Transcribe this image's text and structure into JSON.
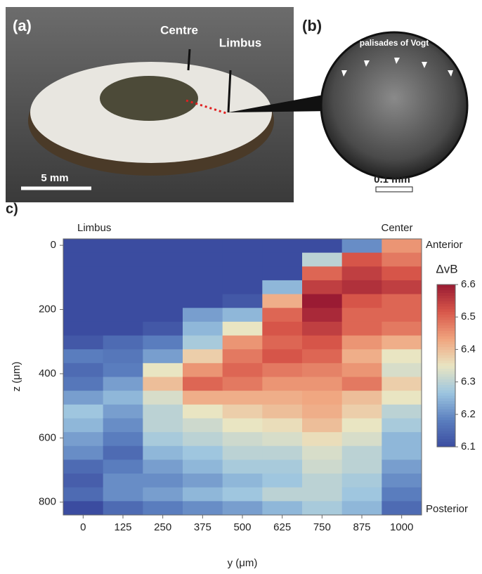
{
  "panels": {
    "a": {
      "label": "(a)",
      "centre": "Centre",
      "limbus": "Limbus",
      "scale": "5 mm"
    },
    "b": {
      "label": "(b)",
      "annotation": "palisades of Vogt",
      "scale": "0.1 mm"
    }
  },
  "chart_data": {
    "type": "heatmap",
    "panel_label": "c)",
    "left_note": "Limbus",
    "right_note": "Center",
    "top_note": "Anterior",
    "bottom_note": "Posterior",
    "xlabel": "y (μm)",
    "ylabel": "z (μm)",
    "colorbar_label": "ΔvB",
    "x": [
      0,
      125,
      250,
      375,
      500,
      625,
      750,
      875,
      1000
    ],
    "xlim": [
      -62.5,
      1062.5
    ],
    "z_edges": [
      -20,
      23,
      66,
      109,
      152,
      195,
      238,
      281,
      324,
      367,
      410,
      453,
      496,
      539,
      582,
      625,
      668,
      711,
      754,
      797,
      840
    ],
    "ylim": [
      -20,
      840
    ],
    "yticks": [
      0,
      200,
      400,
      600,
      800
    ],
    "clim": [
      6.1,
      6.6
    ],
    "cticks": [
      6.1,
      6.2,
      6.3,
      6.4,
      6.5,
      6.6
    ],
    "colormap": [
      "#3b4ca0",
      "#5b7fbf",
      "#9cc5e0",
      "#e9e5c2",
      "#f0a47e",
      "#d8574a",
      "#9a1b33"
    ],
    "values": [
      [
        6.1,
        6.1,
        6.1,
        6.1,
        6.1,
        6.1,
        6.1,
        6.12,
        6.18,
        6.15,
        6.17,
        6.22,
        6.27,
        6.25,
        6.22,
        6.2,
        6.15,
        6.13,
        6.15,
        6.1
      ],
      [
        6.1,
        6.1,
        6.1,
        6.1,
        6.1,
        6.1,
        6.1,
        6.15,
        6.17,
        6.18,
        6.22,
        6.25,
        6.22,
        6.2,
        6.18,
        6.15,
        6.18,
        6.2,
        6.2,
        6.15
      ],
      [
        6.1,
        6.1,
        6.1,
        6.1,
        6.1,
        6.1,
        6.12,
        6.18,
        6.22,
        6.35,
        6.4,
        6.33,
        6.3,
        6.3,
        6.28,
        6.25,
        6.22,
        6.2,
        6.22,
        6.18
      ],
      [
        6.1,
        6.1,
        6.1,
        6.1,
        6.1,
        6.22,
        6.25,
        6.28,
        6.38,
        6.45,
        6.5,
        6.42,
        6.35,
        6.32,
        6.3,
        6.27,
        6.25,
        6.22,
        6.25,
        6.2
      ],
      [
        6.1,
        6.1,
        6.1,
        6.1,
        6.12,
        6.25,
        6.35,
        6.45,
        6.48,
        6.5,
        6.48,
        6.42,
        6.38,
        6.35,
        6.32,
        6.3,
        6.28,
        6.25,
        6.27,
        6.22
      ],
      [
        6.1,
        6.1,
        6.1,
        6.25,
        6.42,
        6.5,
        6.52,
        6.5,
        6.52,
        6.48,
        6.45,
        6.42,
        6.4,
        6.36,
        6.33,
        6.3,
        6.28,
        6.27,
        6.3,
        6.25
      ],
      [
        6.1,
        6.3,
        6.5,
        6.55,
        6.6,
        6.58,
        6.55,
        6.52,
        6.5,
        6.47,
        6.45,
        6.43,
        6.42,
        6.4,
        6.36,
        6.33,
        6.32,
        6.3,
        6.3,
        6.28
      ],
      [
        6.2,
        6.52,
        6.55,
        6.57,
        6.52,
        6.5,
        6.5,
        6.45,
        6.42,
        6.45,
        6.48,
        6.4,
        6.38,
        6.35,
        6.33,
        6.3,
        6.3,
        6.28,
        6.27,
        6.25
      ],
      [
        6.45,
        6.48,
        6.52,
        6.55,
        6.5,
        6.5,
        6.48,
        6.42,
        6.35,
        6.33,
        6.38,
        6.35,
        6.3,
        6.28,
        6.25,
        6.25,
        6.22,
        6.2,
        6.18,
        6.15
      ]
    ]
  }
}
